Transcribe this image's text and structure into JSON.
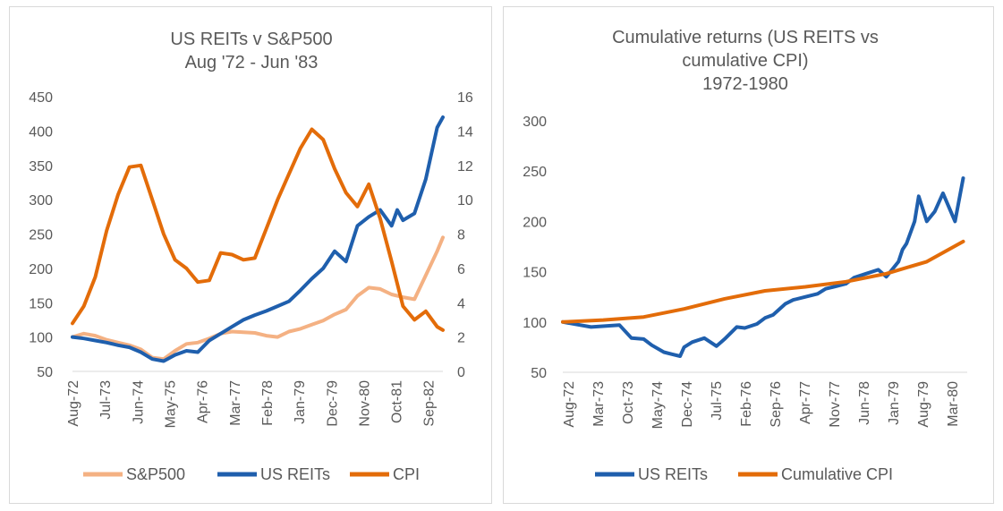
{
  "chart_data": [
    {
      "type": "line",
      "title": "US REITs v S&P500",
      "subtitle": "Aug '72 - Jun '83",
      "x_ticks": [
        "Aug-72",
        "Jul-73",
        "Jun-74",
        "May-75",
        "Apr-76",
        "Mar-77",
        "Feb-78",
        "Jan-79",
        "Dec-79",
        "Nov-80",
        "Oct-81",
        "Sep-82"
      ],
      "y_left": {
        "min": 50,
        "max": 450,
        "step": 50,
        "ticks": [
          "50",
          "100",
          "150",
          "200",
          "250",
          "300",
          "350",
          "400",
          "450"
        ]
      },
      "y_right": {
        "min": 0,
        "max": 16,
        "step": 2,
        "ticks": [
          "0",
          "2",
          "4",
          "6",
          "8",
          "10",
          "12",
          "14",
          "16"
        ]
      },
      "legend_position": "bottom",
      "grid": false,
      "series": [
        {
          "name": "S&P500",
          "axis": "left",
          "color": "#f4b183",
          "x": [
            0,
            4,
            8,
            12,
            16,
            20,
            24,
            28,
            32,
            36,
            40,
            44,
            48,
            52,
            56,
            60,
            64,
            68,
            72,
            76,
            80,
            84,
            88,
            92,
            96,
            100,
            104,
            108,
            112,
            116,
            120,
            124,
            128,
            130
          ],
          "values": [
            100,
            105,
            102,
            96,
            92,
            88,
            82,
            70,
            68,
            80,
            90,
            92,
            98,
            105,
            108,
            107,
            106,
            102,
            100,
            108,
            112,
            118,
            124,
            133,
            140,
            160,
            172,
            170,
            162,
            158,
            155,
            190,
            225,
            245
          ]
        },
        {
          "name": "US REITs",
          "axis": "left",
          "color": "#1f5fad",
          "x": [
            0,
            4,
            8,
            12,
            16,
            20,
            24,
            28,
            32,
            36,
            40,
            44,
            48,
            52,
            56,
            60,
            64,
            68,
            72,
            76,
            80,
            84,
            88,
            92,
            96,
            100,
            104,
            108,
            112,
            114,
            116,
            120,
            124,
            128,
            130
          ],
          "values": [
            100,
            98,
            95,
            92,
            88,
            85,
            78,
            68,
            65,
            74,
            80,
            78,
            95,
            105,
            115,
            125,
            132,
            138,
            145,
            152,
            168,
            185,
            200,
            225,
            210,
            262,
            275,
            285,
            262,
            285,
            270,
            280,
            330,
            405,
            420
          ]
        },
        {
          "name": "CPI",
          "axis": "right",
          "color": "#e36c09",
          "x": [
            0,
            4,
            8,
            12,
            16,
            20,
            24,
            28,
            32,
            36,
            40,
            44,
            48,
            52,
            56,
            60,
            64,
            68,
            72,
            76,
            80,
            84,
            88,
            92,
            96,
            100,
            104,
            108,
            112,
            116,
            120,
            124,
            128,
            130
          ],
          "values": [
            2.8,
            3.8,
            5.5,
            8.2,
            10.3,
            11.9,
            12.0,
            10.0,
            8.0,
            6.5,
            6.0,
            5.2,
            5.3,
            6.9,
            6.8,
            6.5,
            6.6,
            8.3,
            10.0,
            11.5,
            13.0,
            14.1,
            13.5,
            11.8,
            10.4,
            9.6,
            10.9,
            8.9,
            6.4,
            3.8,
            3.0,
            3.5,
            2.6,
            2.4
          ]
        }
      ]
    },
    {
      "type": "line",
      "title": "Cumulative returns (US REITS vs",
      "subtitle": "cumulative CPI)",
      "subtitle2": "1972-1980",
      "x_ticks": [
        "Aug-72",
        "Mar-73",
        "Oct-73",
        "May-74",
        "Dec-74",
        "Jul-75",
        "Feb-76",
        "Sep-76",
        "Apr-77",
        "Nov-77",
        "Jun-78",
        "Jan-79",
        "Aug-79",
        "Mar-80"
      ],
      "y_left": {
        "min": 50,
        "max": 300,
        "step": 50,
        "ticks": [
          "50",
          "100",
          "150",
          "200",
          "250",
          "300"
        ]
      },
      "legend_position": "bottom",
      "grid": false,
      "series": [
        {
          "name": "US REITs",
          "color": "#1f5fad",
          "x": [
            0,
            7,
            14,
            17,
            20,
            22,
            25,
            27,
            29,
            30,
            32,
            35,
            38,
            40,
            43,
            45,
            48,
            50,
            52,
            55,
            57,
            60,
            63,
            65,
            67,
            70,
            72,
            75,
            78,
            80,
            83,
            84,
            85,
            87,
            88,
            90,
            92,
            94,
            97,
            99
          ],
          "values": [
            100,
            95,
            97,
            84,
            83,
            77,
            70,
            68,
            66,
            75,
            80,
            84,
            76,
            83,
            95,
            94,
            98,
            104,
            107,
            118,
            122,
            125,
            128,
            133,
            135,
            138,
            144,
            148,
            152,
            145,
            160,
            172,
            178,
            200,
            225,
            200,
            210,
            228,
            200,
            243
          ]
        },
        {
          "name": "Cumulative CPI",
          "color": "#e36c09",
          "x": [
            0,
            10,
            20,
            30,
            40,
            50,
            60,
            70,
            80,
            90,
            99
          ],
          "values": [
            100,
            102,
            105,
            113,
            123,
            131,
            135,
            140,
            148,
            160,
            180
          ]
        }
      ]
    }
  ]
}
